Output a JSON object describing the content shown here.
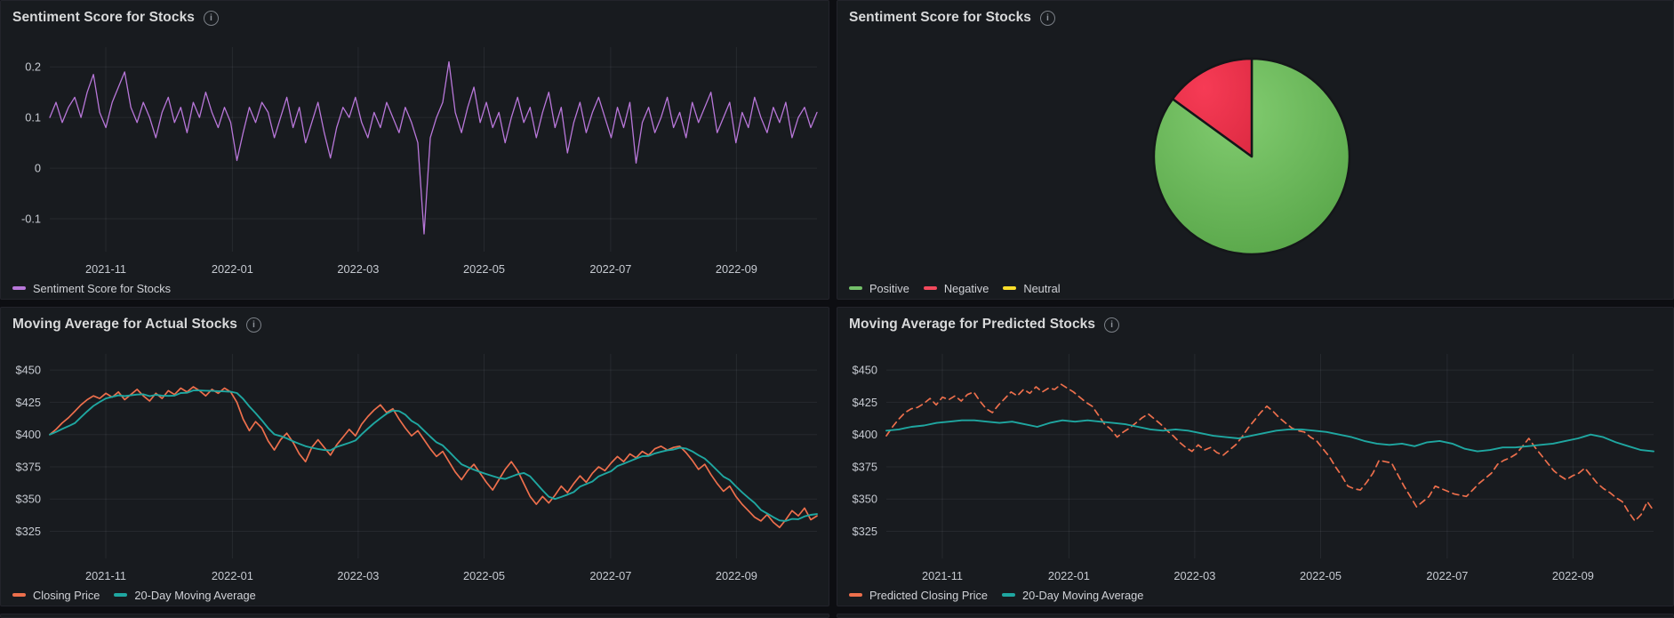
{
  "chart_data": [
    {
      "type": "line",
      "title": "Sentiment Score for Stocks",
      "ylim": [
        -0.165,
        0.239
      ],
      "yticks": {
        "values": [
          0.2,
          0.1,
          0,
          -0.1
        ],
        "labels": [
          "0.2",
          "0.1",
          "0",
          "-0.1"
        ]
      },
      "xticks": [
        [
          0.073,
          "2021-11"
        ],
        [
          0.238,
          "2022-01"
        ],
        [
          0.402,
          "2022-03"
        ],
        [
          0.566,
          "2022-05"
        ],
        [
          0.731,
          "2022-07"
        ],
        [
          0.895,
          "2022-09"
        ]
      ],
      "grid": true,
      "legend_position": "bottom",
      "series": [
        {
          "name": "Sentiment Score for Stocks",
          "color": "#B877D9",
          "width": 1.3,
          "values": [
            0.1,
            0.13,
            0.09,
            0.12,
            0.14,
            0.1,
            0.15,
            0.185,
            0.11,
            0.08,
            0.13,
            0.16,
            0.19,
            0.12,
            0.09,
            0.13,
            0.1,
            0.06,
            0.11,
            0.14,
            0.09,
            0.12,
            0.07,
            0.13,
            0.1,
            0.15,
            0.11,
            0.08,
            0.12,
            0.09,
            0.015,
            0.07,
            0.12,
            0.09,
            0.13,
            0.11,
            0.06,
            0.1,
            0.14,
            0.08,
            0.12,
            0.05,
            0.09,
            0.13,
            0.07,
            0.02,
            0.08,
            0.12,
            0.1,
            0.14,
            0.09,
            0.06,
            0.11,
            0.08,
            0.13,
            0.1,
            0.07,
            0.12,
            0.09,
            0.05,
            -0.13,
            0.06,
            0.1,
            0.13,
            0.21,
            0.11,
            0.07,
            0.12,
            0.16,
            0.09,
            0.13,
            0.08,
            0.11,
            0.05,
            0.1,
            0.14,
            0.09,
            0.12,
            0.06,
            0.11,
            0.15,
            0.08,
            0.12,
            0.03,
            0.09,
            0.13,
            0.07,
            0.11,
            0.14,
            0.1,
            0.06,
            0.12,
            0.08,
            0.13,
            0.01,
            0.09,
            0.12,
            0.07,
            0.1,
            0.14,
            0.08,
            0.11,
            0.06,
            0.13,
            0.09,
            0.12,
            0.15,
            0.07,
            0.1,
            0.13,
            0.05,
            0.11,
            0.08,
            0.14,
            0.1,
            0.07,
            0.12,
            0.09,
            0.13,
            0.06,
            0.1,
            0.12,
            0.08,
            0.11
          ]
        }
      ]
    },
    {
      "type": "pie",
      "title": "Sentiment Score for Stocks",
      "slices": [
        {
          "label": "Positive",
          "value": 85,
          "color": "#73BF69"
        },
        {
          "label": "Negative",
          "value": 15,
          "color": "#F2495C"
        },
        {
          "label": "Neutral",
          "value": 0,
          "color": "#FADE2A"
        }
      ]
    },
    {
      "type": "line",
      "title": "Moving Average for Actual Stocks",
      "ylim": [
        304,
        462.5
      ],
      "yticks": {
        "values": [
          450,
          425,
          400,
          375,
          350,
          325
        ],
        "labels": [
          "$450",
          "$425",
          "$400",
          "$375",
          "$350",
          "$325"
        ]
      },
      "xticks": [
        [
          0.073,
          "2021-11"
        ],
        [
          0.238,
          "2022-01"
        ],
        [
          0.402,
          "2022-03"
        ],
        [
          0.566,
          "2022-05"
        ],
        [
          0.731,
          "2022-07"
        ],
        [
          0.895,
          "2022-09"
        ]
      ],
      "grid": true,
      "legend_position": "bottom",
      "series": [
        {
          "name": "Closing Price",
          "color": "#ED6F4C",
          "width": 1.7,
          "values": [
            400,
            404,
            409,
            413,
            418,
            423,
            427,
            430,
            428,
            432,
            429,
            433,
            427,
            431,
            435,
            430,
            426,
            432,
            428,
            434,
            431,
            436,
            433,
            437,
            434,
            430,
            435,
            432,
            436,
            433,
            425,
            412,
            403,
            410,
            405,
            395,
            388,
            396,
            401,
            394,
            385,
            379,
            390,
            396,
            390,
            384,
            392,
            398,
            404,
            399,
            408,
            414,
            419,
            423,
            417,
            420,
            412,
            405,
            399,
            403,
            396,
            389,
            383,
            387,
            379,
            371,
            365,
            372,
            377,
            370,
            363,
            357,
            365,
            373,
            379,
            372,
            362,
            352,
            346,
            352,
            347,
            353,
            360,
            355,
            362,
            368,
            363,
            370,
            375,
            372,
            378,
            383,
            379,
            385,
            382,
            387,
            384,
            389,
            391,
            388,
            390,
            391,
            386,
            380,
            373,
            377,
            369,
            362,
            356,
            360,
            352,
            346,
            341,
            336,
            333,
            338,
            332,
            328,
            334,
            341,
            337,
            343,
            334,
            337
          ]
        },
        {
          "name": "20-Day Moving Average",
          "color": "#1FA7A1",
          "width": 1.9,
          "rolling": 5
        }
      ]
    },
    {
      "type": "line",
      "title": "Moving Average for Predicted Stocks",
      "ylim": [
        304,
        462.5
      ],
      "yticks": {
        "values": [
          450,
          425,
          400,
          375,
          350,
          325
        ],
        "labels": [
          "$450",
          "$425",
          "$400",
          "$375",
          "$350",
          "$325"
        ]
      },
      "xticks": [
        [
          0.073,
          "2021-11"
        ],
        [
          0.238,
          "2022-01"
        ],
        [
          0.402,
          "2022-03"
        ],
        [
          0.566,
          "2022-05"
        ],
        [
          0.731,
          "2022-07"
        ],
        [
          0.895,
          "2022-09"
        ]
      ],
      "grid": true,
      "legend_position": "bottom",
      "series": [
        {
          "name": "Predicted Closing Price",
          "color": "#ED6F4C",
          "width": 1.7,
          "dash": "7 5",
          "values": [
            399,
            406,
            412,
            417,
            420,
            421,
            424,
            428,
            423,
            429,
            427,
            430,
            426,
            431,
            433,
            426,
            420,
            417,
            423,
            428,
            433,
            430,
            435,
            432,
            437,
            433,
            436,
            435,
            439,
            436,
            433,
            429,
            425,
            422,
            415,
            408,
            404,
            398,
            402,
            405,
            409,
            413,
            416,
            412,
            408,
            403,
            399,
            394,
            390,
            387,
            392,
            388,
            390,
            386,
            384,
            388,
            392,
            398,
            405,
            411,
            417,
            422,
            418,
            413,
            409,
            405,
            403,
            402,
            398,
            395,
            389,
            383,
            375,
            368,
            360,
            358,
            357,
            363,
            370,
            380,
            379,
            378,
            369,
            360,
            352,
            344,
            348,
            352,
            360,
            358,
            356,
            354,
            353,
            352,
            357,
            362,
            366,
            370,
            377,
            380,
            382,
            385,
            391,
            397,
            390,
            384,
            378,
            372,
            368,
            365,
            368,
            370,
            374,
            368,
            362,
            358,
            355,
            351,
            348,
            340,
            333,
            338,
            348,
            341
          ]
        },
        {
          "name": "20-Day Moving Average",
          "color": "#1FA7A1",
          "width": 1.9,
          "values": [
            403,
            404,
            406,
            407,
            409,
            410,
            411,
            411,
            410,
            409,
            410,
            408,
            406,
            409,
            411,
            410,
            411,
            410,
            409,
            408,
            406,
            404,
            403,
            404,
            403,
            401,
            399,
            398,
            397,
            399,
            401,
            403,
            404,
            404,
            403,
            402,
            400,
            398,
            395,
            393,
            392,
            393,
            391,
            394,
            395,
            393,
            389,
            387,
            388,
            390,
            390,
            391,
            392,
            393,
            395,
            397,
            400,
            398,
            394,
            391,
            388,
            387
          ]
        }
      ]
    }
  ],
  "panels": {
    "sentiment_line": {
      "title": "Sentiment Score for Stocks"
    },
    "sentiment_pie": {
      "title": "Sentiment Score for Stocks"
    },
    "actual": {
      "title": "Moving Average for Actual Stocks"
    },
    "predicted": {
      "title": "Moving Average for Predicted Stocks"
    }
  },
  "icons": {
    "info": "i"
  },
  "colors": {
    "background": "#0d0e12",
    "panel_background": "#181b1f",
    "panel_border": "#23242b",
    "purple": "#B877D9",
    "green": "#73BF69",
    "red": "#F2495C",
    "yellow": "#FADE2A",
    "orange": "#ED6F4C",
    "teal": "#1FA7A1"
  }
}
